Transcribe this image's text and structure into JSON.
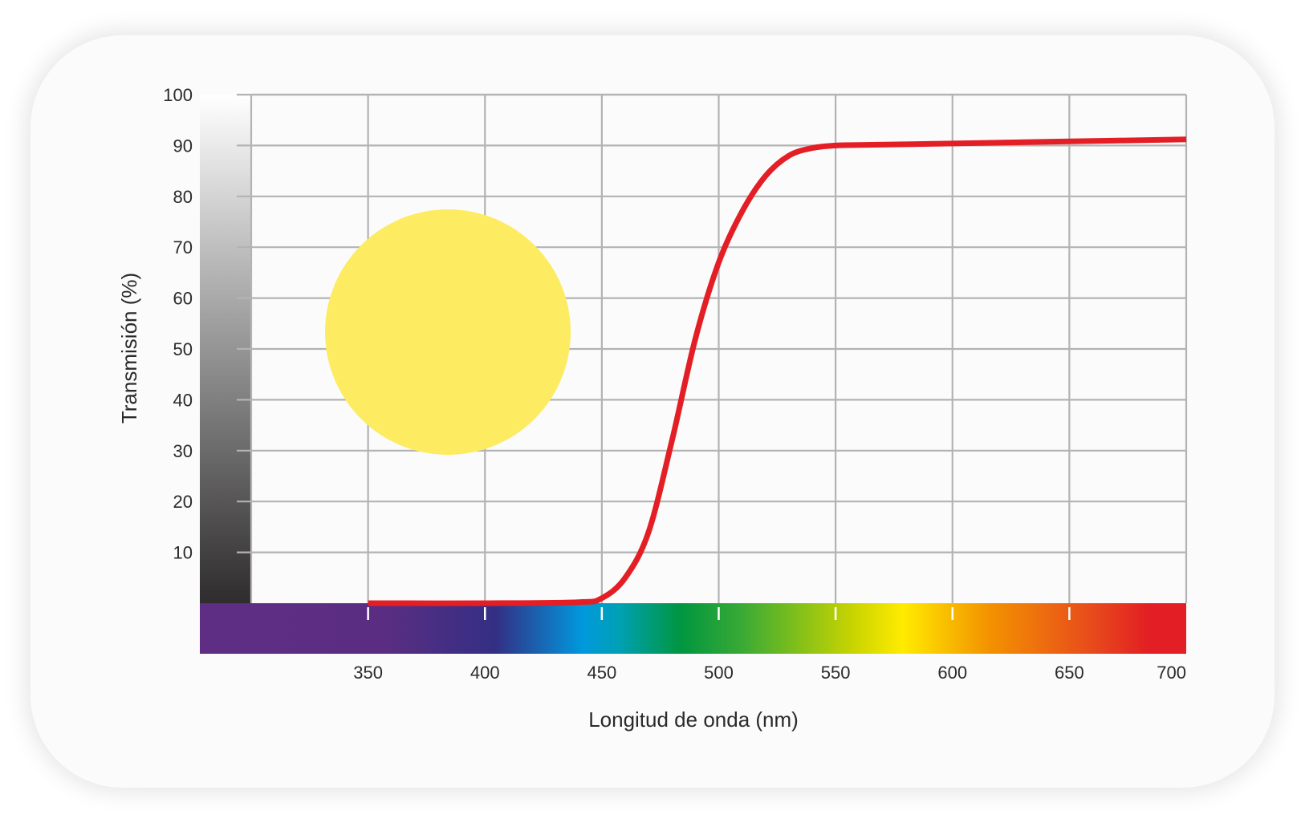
{
  "chart_data": {
    "type": "line",
    "title": "",
    "xlabel": "Longitud de onda (nm)",
    "ylabel": "Transmisión (%)",
    "xlim": [
      300,
      700
    ],
    "ylim": [
      0,
      100
    ],
    "grid": true,
    "x_ticks": [
      350,
      400,
      450,
      500,
      550,
      600,
      650,
      700
    ],
    "x_tick_labels": [
      "350",
      "400",
      "450",
      "500",
      "550",
      "600",
      "650",
      "700"
    ],
    "y_ticks": [
      10,
      20,
      30,
      40,
      50,
      60,
      70,
      80,
      90,
      100
    ],
    "y_tick_labels": [
      "10",
      "20",
      "30",
      "40",
      "50",
      "60",
      "70",
      "80",
      "90",
      "100"
    ],
    "series": [
      {
        "color": "#e31e24",
        "x": [
          350,
          400,
          440,
          450,
          460,
          470,
          480,
          490,
          500,
          510,
          520,
          530,
          540,
          550,
          560,
          600,
          650,
          700
        ],
        "y": [
          0,
          0,
          0.2,
          1,
          5,
          14,
          32,
          52,
          67,
          77,
          84,
          88,
          89.5,
          90,
          90.1,
          90.4,
          90.8,
          91.2
        ]
      }
    ],
    "color_swatch": "#fdeb62",
    "spectrum_stops": [
      {
        "x": 300,
        "color": "#5f2e84"
      },
      {
        "x": 375,
        "color": "#5a2d82"
      },
      {
        "x": 420,
        "color": "#332f84"
      },
      {
        "x": 455,
        "color": "#0098dd"
      },
      {
        "x": 470,
        "color": "#00a0b4"
      },
      {
        "x": 495,
        "color": "#009640"
      },
      {
        "x": 520,
        "color": "#3aaa35"
      },
      {
        "x": 565,
        "color": "#c9d400"
      },
      {
        "x": 585,
        "color": "#ffeb00"
      },
      {
        "x": 620,
        "color": "#f39200"
      },
      {
        "x": 660,
        "color": "#e84e1b"
      },
      {
        "x": 685,
        "color": "#e31e24"
      },
      {
        "x": 700,
        "color": "#e31e24"
      }
    ]
  }
}
